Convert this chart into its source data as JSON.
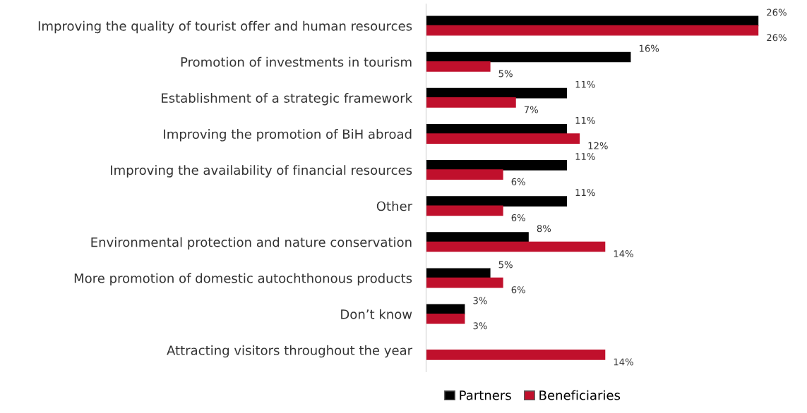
{
  "chart_data": {
    "type": "bar",
    "orientation": "horizontal",
    "categories": [
      "Improving the quality of tourist offer and human resources",
      "Promotion of investments in tourism",
      "Establishment of a strategic framework",
      "Improving the promotion of BiH abroad",
      "Improving the availability of financial resources",
      "Other",
      "Environmental protection and nature conservation",
      "More promotion of domestic autochthonous products",
      "Don’t know",
      "Attracting visitors throughout the year"
    ],
    "series": [
      {
        "name": "Partners",
        "color": "#000000",
        "values": [
          26,
          16,
          11,
          11,
          11,
          11,
          8,
          5,
          3,
          null
        ],
        "value_labels": [
          "26%",
          "16%",
          "11%",
          "11%",
          "11%",
          "11%",
          "8%",
          "5%",
          "3%",
          null
        ]
      },
      {
        "name": "Beneficiaries",
        "color": "#c0102c",
        "values": [
          26,
          5,
          7,
          12,
          6,
          6,
          14,
          6,
          3,
          14
        ],
        "value_labels": [
          "26%",
          "5%",
          "7%",
          "12%",
          "6%",
          "6%",
          "14%",
          "6%",
          "3%",
          "14%"
        ]
      }
    ],
    "legend": "bottom",
    "grid": false
  }
}
